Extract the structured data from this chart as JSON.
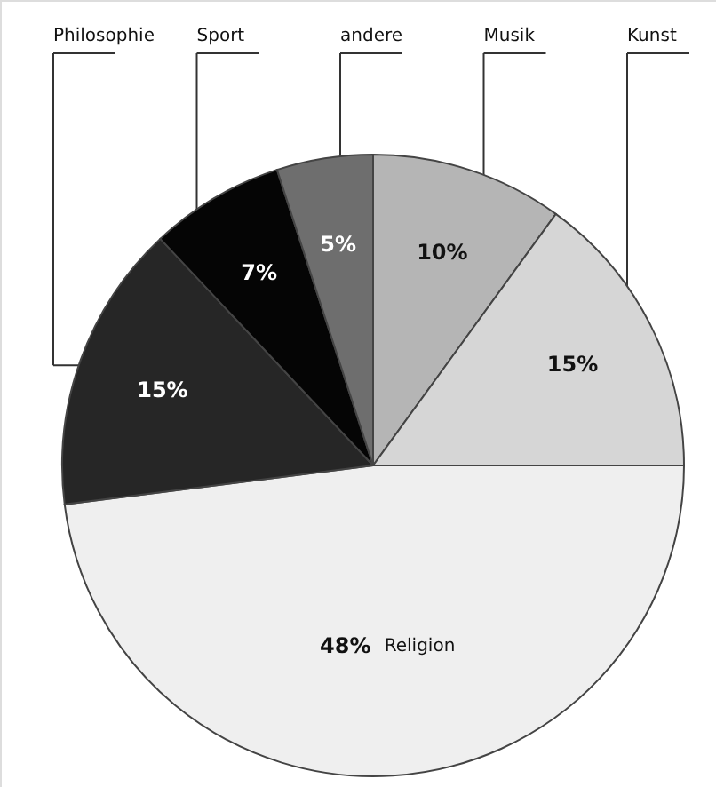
{
  "chart_data": {
    "type": "pie",
    "categories": [
      "Musik",
      "Kunst",
      "Religion",
      "Philosophie",
      "Sport",
      "andere"
    ],
    "values": [
      10,
      15,
      48,
      15,
      7,
      5
    ],
    "value_labels": [
      "10%",
      "15%",
      "48%",
      "15%",
      "7%",
      "5%"
    ],
    "colors": [
      "#b5b5b5",
      "#d6d6d6",
      "#efefef",
      "#262626",
      "#050505",
      "#6e6e6e"
    ]
  }
}
